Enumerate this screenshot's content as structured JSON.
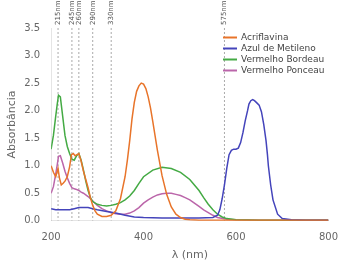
{
  "chart_data": {
    "type": "line",
    "xlabel": "λ (nm)",
    "ylabel": "Absorbância",
    "xlim": [
      200,
      800
    ],
    "ylim": [
      0.0,
      3.5
    ],
    "xticks": [
      200,
      400,
      600,
      800
    ],
    "yticks": [
      {
        "value": 0.0,
        "label": "0.0"
      },
      0.5,
      {
        "value": 1.0,
        "label": "1.0"
      },
      1.5,
      {
        "value": 2.0,
        "label": "2.0"
      },
      2.5,
      {
        "value": 3.0,
        "label": "3.0"
      },
      3.5
    ],
    "grid": false,
    "legend": "upper right",
    "vlines": [
      {
        "x": 215,
        "label": "215nm"
      },
      {
        "x": 245,
        "label": "245nm"
      },
      {
        "x": 260,
        "label": "260nm"
      },
      {
        "x": 290,
        "label": "290nm"
      },
      {
        "x": 330,
        "label": "330nm"
      },
      {
        "x": 575,
        "label": "575nm"
      }
    ],
    "series": [
      {
        "name": "Acriflavina",
        "color": "#e8742a",
        "x": [
          200,
          205,
          210,
          215,
          218,
          222,
          226,
          230,
          235,
          240,
          244,
          248,
          252,
          256,
          260,
          265,
          270,
          275,
          280,
          285,
          290,
          295,
          300,
          310,
          320,
          330,
          340,
          350,
          360,
          365,
          370,
          375,
          380,
          385,
          390,
          395,
          400,
          405,
          410,
          415,
          420,
          430,
          440,
          450,
          460,
          470,
          480,
          490,
          500,
          520,
          550,
          600,
          700,
          800
        ],
        "values": [
          1.0,
          0.88,
          0.8,
          0.95,
          0.78,
          0.65,
          0.68,
          0.72,
          0.8,
          0.98,
          1.2,
          1.22,
          1.18,
          1.2,
          1.22,
          1.08,
          0.9,
          0.75,
          0.6,
          0.42,
          0.28,
          0.18,
          0.12,
          0.08,
          0.08,
          0.1,
          0.18,
          0.4,
          0.8,
          1.1,
          1.45,
          1.85,
          2.15,
          2.35,
          2.45,
          2.5,
          2.48,
          2.4,
          2.25,
          2.05,
          1.8,
          1.28,
          0.82,
          0.48,
          0.25,
          0.12,
          0.06,
          0.03,
          0.02,
          0.01,
          0.01,
          0.01,
          0.01,
          0.01
        ]
      },
      {
        "name": "Azul de Metileno",
        "color": "#4444bb",
        "x": [
          200,
          210,
          220,
          230,
          240,
          250,
          260,
          270,
          280,
          290,
          300,
          320,
          340,
          360,
          380,
          400,
          440,
          480,
          520,
          550,
          560,
          565,
          570,
          575,
          580,
          585,
          590,
          595,
          600,
          605,
          610,
          615,
          620,
          625,
          628,
          632,
          636,
          640,
          645,
          650,
          655,
          660,
          665,
          668,
          670,
          675,
          680,
          690,
          700,
          720,
          750,
          800
        ],
        "values": [
          0.22,
          0.2,
          0.2,
          0.2,
          0.2,
          0.22,
          0.24,
          0.24,
          0.24,
          0.22,
          0.2,
          0.17,
          0.14,
          0.1,
          0.07,
          0.06,
          0.05,
          0.05,
          0.05,
          0.06,
          0.1,
          0.2,
          0.4,
          0.65,
          0.95,
          1.2,
          1.28,
          1.3,
          1.3,
          1.32,
          1.42,
          1.6,
          1.82,
          2.0,
          2.12,
          2.18,
          2.2,
          2.18,
          2.14,
          2.1,
          1.98,
          1.75,
          1.45,
          1.2,
          1.0,
          0.65,
          0.38,
          0.12,
          0.04,
          0.02,
          0.01,
          0.01
        ]
      },
      {
        "name": "Vermelho Bordeau",
        "color": "#44aa44",
        "x": [
          200,
          205,
          210,
          213,
          216,
          220,
          225,
          230,
          235,
          240,
          245,
          250,
          255,
          260,
          265,
          270,
          275,
          280,
          285,
          290,
          300,
          310,
          320,
          330,
          340,
          350,
          360,
          370,
          380,
          390,
          400,
          420,
          440,
          460,
          480,
          500,
          510,
          520,
          530,
          540,
          550,
          560,
          570,
          580,
          600,
          650,
          700,
          800
        ],
        "values": [
          1.3,
          1.55,
          1.9,
          2.1,
          2.28,
          2.25,
          1.9,
          1.55,
          1.35,
          1.22,
          1.12,
          1.1,
          1.18,
          1.22,
          1.1,
          0.92,
          0.72,
          0.55,
          0.42,
          0.35,
          0.3,
          0.28,
          0.27,
          0.28,
          0.3,
          0.33,
          0.38,
          0.45,
          0.55,
          0.68,
          0.8,
          0.92,
          0.97,
          0.95,
          0.88,
          0.75,
          0.65,
          0.55,
          0.42,
          0.3,
          0.2,
          0.12,
          0.07,
          0.04,
          0.02,
          0.01,
          0.01,
          0.01
        ]
      },
      {
        "name": "Vermelho Ponceau",
        "color": "#bb66aa",
        "x": [
          200,
          205,
          210,
          213,
          216,
          220,
          225,
          230,
          235,
          240,
          245,
          250,
          255,
          260,
          265,
          270,
          275,
          280,
          285,
          290,
          295,
          300,
          310,
          320,
          330,
          340,
          350,
          360,
          370,
          380,
          390,
          400,
          410,
          420,
          430,
          440,
          450,
          460,
          470,
          480,
          490,
          500,
          510,
          520,
          530,
          540,
          550,
          560,
          580,
          600,
          650,
          700,
          800
        ],
        "values": [
          0.5,
          0.62,
          0.85,
          1.0,
          1.17,
          1.18,
          1.05,
          0.9,
          0.78,
          0.68,
          0.6,
          0.58,
          0.57,
          0.55,
          0.52,
          0.5,
          0.47,
          0.44,
          0.4,
          0.36,
          0.32,
          0.28,
          0.22,
          0.18,
          0.15,
          0.13,
          0.12,
          0.12,
          0.14,
          0.18,
          0.24,
          0.32,
          0.38,
          0.43,
          0.47,
          0.49,
          0.5,
          0.5,
          0.48,
          0.46,
          0.42,
          0.38,
          0.32,
          0.26,
          0.2,
          0.15,
          0.1,
          0.06,
          0.03,
          0.02,
          0.01,
          0.01,
          0.01
        ]
      }
    ]
  }
}
